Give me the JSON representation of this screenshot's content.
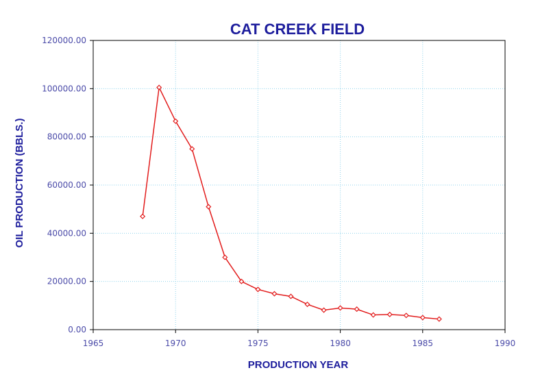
{
  "chart_data": {
    "type": "line",
    "title": "CAT CREEK FIELD",
    "xlabel": "PRODUCTION YEAR",
    "ylabel": "OIL PRODUCTION (BBLS.)",
    "xlim": [
      1965,
      1990
    ],
    "ylim": [
      0,
      120000
    ],
    "xticks": [
      1965,
      1970,
      1975,
      1980,
      1985,
      1990
    ],
    "xtick_labels": [
      "1965",
      "1970",
      "1975",
      "1980",
      "1985",
      "1990"
    ],
    "yticks": [
      0,
      20000,
      40000,
      60000,
      80000,
      100000,
      120000
    ],
    "ytick_labels": [
      "0.00",
      "20000.00",
      "40000.00",
      "60000.00",
      "80000.00",
      "100000.00",
      "120000.00"
    ],
    "grid": true,
    "legend": "none",
    "series": [
      {
        "color": "#e21b1b",
        "marker": "diamond",
        "x": [
          1968,
          1969,
          1970,
          1971,
          1972,
          1973,
          1974,
          1975,
          1976,
          1977,
          1978,
          1979,
          1980,
          1981,
          1982,
          1983,
          1984,
          1985,
          1986
        ],
        "y": [
          47000,
          100500,
          86500,
          75000,
          51000,
          30000,
          20000,
          16700,
          14900,
          13800,
          10500,
          8100,
          9000,
          8500,
          6100,
          6300,
          5900,
          5000,
          4400
        ]
      }
    ]
  }
}
